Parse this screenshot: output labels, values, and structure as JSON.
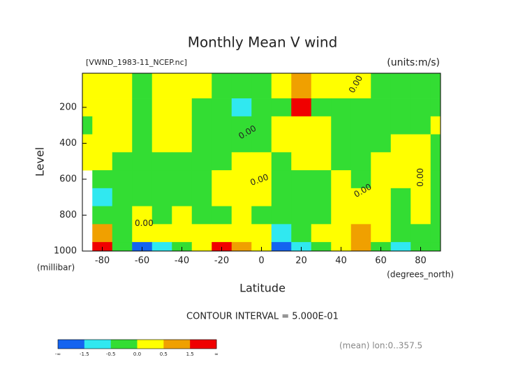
{
  "chart_data": {
    "type": "contour",
    "title": "Monthly Mean V wind",
    "subtitle": "[VWND_1983-11_NCEP.nc]",
    "units": "(units:m/s)",
    "x_label": "Latitude",
    "x_unit": "(degrees_north)",
    "y_label": "Level",
    "y_unit": "(millibar)",
    "contour_interval": "CONTOUR INTERVAL = 5.000E-01",
    "footer": "(mean) lon:0..357.5",
    "x": [
      -90,
      -80,
      -70,
      -60,
      -50,
      -40,
      -30,
      -20,
      -10,
      0,
      10,
      20,
      30,
      40,
      50,
      60,
      70,
      80,
      90
    ],
    "levels": [
      100,
      200,
      300,
      400,
      500,
      600,
      700,
      800,
      900,
      1000
    ],
    "z": [
      [
        0.2,
        0.2,
        0.2,
        -0.1,
        0.2,
        0.2,
        0.1,
        -0.2,
        -0.2,
        -0.1,
        0.3,
        0.8,
        0.2,
        0.2,
        0.1,
        -0.2,
        -0.2,
        -0.2,
        -0.2
      ],
      [
        0.2,
        0.2,
        0.2,
        -0.2,
        0.3,
        0.2,
        -0.2,
        -0.3,
        -0.8,
        -0.3,
        -0.2,
        1.8,
        -0.2,
        -0.3,
        -0.2,
        -0.2,
        -0.2,
        -0.2,
        -0.1
      ],
      [
        -0.1,
        0.2,
        0.2,
        -0.2,
        0.2,
        0.1,
        -0.2,
        -0.3,
        -0.3,
        -0.2,
        0.2,
        0.3,
        0.2,
        -0.2,
        -0.3,
        -0.2,
        -0.2,
        -0.2,
        0.1
      ],
      [
        0.2,
        0.2,
        0.2,
        -0.1,
        0.2,
        0.2,
        -0.2,
        -0.3,
        -0.2,
        -0.1,
        0.2,
        0.2,
        0.2,
        -0.2,
        -0.2,
        -0.1,
        0.2,
        0.2,
        -0.1
      ],
      [
        0.2,
        0.1,
        -0.1,
        -0.2,
        -0.2,
        -0.2,
        -0.2,
        -0.2,
        0.1,
        0.1,
        -0.1,
        0.2,
        0.2,
        -0.1,
        -0.2,
        0.1,
        0.2,
        0.2,
        -0.1
      ],
      [
        null,
        -0.2,
        -0.2,
        -0.2,
        -0.2,
        -0.2,
        -0.2,
        0.1,
        0.2,
        0.1,
        -0.2,
        -0.2,
        -0.1,
        0.1,
        -0.1,
        0.1,
        0.2,
        0.2,
        -0.2
      ],
      [
        null,
        -0.8,
        -0.3,
        -0.2,
        -0.2,
        -0.2,
        -0.2,
        0.1,
        0.2,
        0.1,
        -0.2,
        -0.3,
        -0.2,
        0.1,
        0.2,
        0.2,
        -0.1,
        0.2,
        -0.2
      ],
      [
        null,
        -0.3,
        -0.2,
        0.1,
        -0.1,
        0.1,
        -0.2,
        -0.2,
        0.1,
        -0.2,
        -0.2,
        -0.2,
        -0.2,
        0.2,
        0.3,
        0.2,
        -0.2,
        0.1,
        -0.2
      ],
      [
        null,
        0.8,
        -0.2,
        0.1,
        0.1,
        0.2,
        0.1,
        0.3,
        0.2,
        0.1,
        -0.8,
        -0.3,
        0.1,
        0.2,
        0.8,
        0.2,
        -0.3,
        -0.2,
        -0.2
      ],
      [
        null,
        1.8,
        -0.2,
        -1.8,
        -0.8,
        -0.2,
        0.1,
        1.8,
        0.8,
        0.2,
        -1.8,
        -0.8,
        -0.1,
        0.2,
        0.8,
        -0.1,
        -0.8,
        -0.2,
        -0.2
      ]
    ],
    "xlim": [
      -90,
      90
    ],
    "xticks": [
      -80,
      -60,
      -40,
      -20,
      0,
      20,
      40,
      60,
      80
    ],
    "ylim": [
      1000,
      10
    ],
    "yticks": [
      200,
      400,
      600,
      800,
      1000
    ],
    "colorbar": {
      "colors": [
        "#1464f0",
        "#30e8f0",
        "#33dd33",
        "#ffff00",
        "#f0a000",
        "#f00000"
      ],
      "ticks": [
        {
          "value": -1.5,
          "label": "-1.5"
        },
        {
          "value": -0.5,
          "label": "-0.5"
        },
        {
          "value": 0,
          "label": "0.0"
        },
        {
          "value": 0.5,
          "label": "0.5"
        },
        {
          "value": 1.5,
          "label": "1.5"
        }
      ],
      "low_label": "-∞",
      "high_label": "∞"
    },
    "annotations": [
      {
        "text": "0.00",
        "x": 47.5,
        "level": 72,
        "rotate": -60
      },
      {
        "text": "0.00",
        "x": -7,
        "level": 340,
        "rotate": -30
      },
      {
        "text": "0.00",
        "x": -1,
        "level": 605,
        "rotate": -20
      },
      {
        "text": "0.00",
        "x": 51,
        "level": 665,
        "rotate": -30
      },
      {
        "text": "0.00",
        "x": 80,
        "level": 590,
        "rotate": -90
      },
      {
        "text": "0.00",
        "x": -59,
        "level": 846,
        "rotate": 0
      }
    ]
  }
}
